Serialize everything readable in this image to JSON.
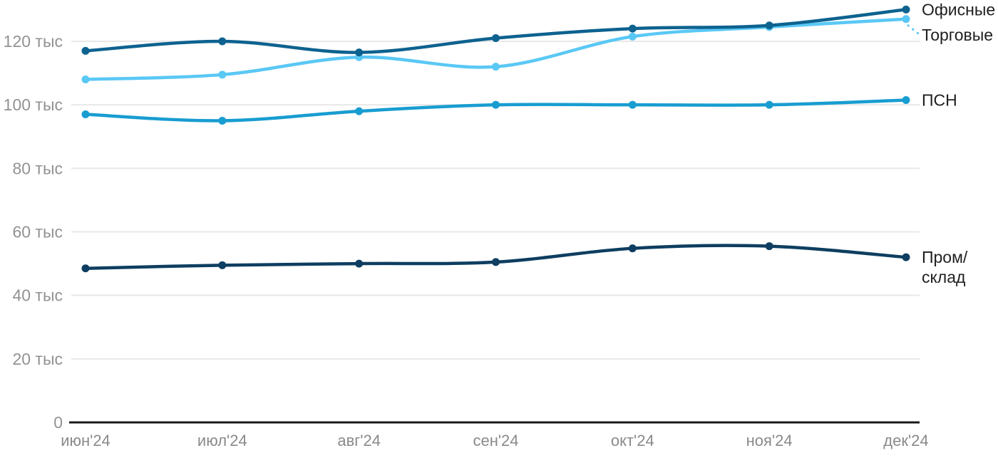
{
  "chart_data": {
    "type": "line",
    "title": "",
    "xlabel": "",
    "ylabel": "",
    "categories": [
      "июн'24",
      "июл'24",
      "авг'24",
      "сен'24",
      "окт'24",
      "ноя'24",
      "дек'24"
    ],
    "series": [
      {
        "name": "Пром/склад",
        "color": "#0e3e61",
        "values": [
          48.5,
          49.5,
          50,
          50.5,
          54.8,
          55.5,
          52
        ],
        "label_lines": [
          "Пром/",
          "склад"
        ],
        "leader": false
      },
      {
        "name": "ПСН",
        "color": "#189dd1",
        "values": [
          97,
          95,
          98,
          100,
          100,
          100,
          101.5
        ],
        "label_lines": [
          "ПСН"
        ],
        "leader": false
      },
      {
        "name": "Торговые",
        "color": "#5ac8f5",
        "values": [
          108,
          109.5,
          115,
          112,
          121.5,
          124.5,
          127
        ],
        "label_lines": [
          "Торговые"
        ],
        "leader": true,
        "label_offset_y": 22
      },
      {
        "name": "Офисные",
        "color": "#0d628f",
        "values": [
          117,
          120,
          116.5,
          121,
          124,
          125,
          130
        ],
        "label_lines": [
          "Офисные"
        ],
        "leader": false
      }
    ],
    "yticks": [
      0,
      20,
      40,
      60,
      80,
      100,
      120
    ],
    "ytick_labels": [
      "0",
      "20 тыс",
      "40 тыс",
      "60 тыс",
      "80 тыс",
      "100 тыс",
      "120 тыс"
    ],
    "ylim": [
      0,
      131
    ],
    "unit": "тыс",
    "grid": "horizontal",
    "legend_position": "right-end-labels"
  },
  "styles": {
    "background": "#ffffff",
    "grid_color": "#e8e8e8",
    "axis_line_color": "#1a1a1a",
    "ytick_label_color": "#929292",
    "xtick_label_color": "#8a8a8a",
    "end_label_color": "#1f1f1f"
  }
}
